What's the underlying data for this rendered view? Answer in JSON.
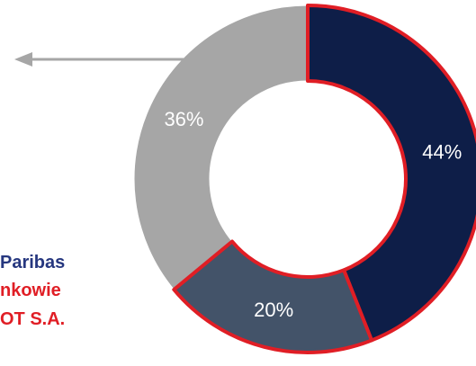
{
  "colors": {
    "background": "#ffffff",
    "slice_outline": "#e01e25",
    "arrow": "#a6a6a6",
    "legend_navy": "#26377f",
    "legend_red": "#e01e25"
  },
  "legend_fragments": [
    {
      "text": "Paribas",
      "color": "#26377f"
    },
    {
      "text": "nkowie",
      "color": "#e01e25"
    },
    {
      "text": "OT S.A.",
      "color": "#e01e25"
    }
  ],
  "chart_data": {
    "type": "pie",
    "variant": "donut",
    "title": "",
    "slices": [
      {
        "label": "44%",
        "value": 44,
        "color": "#0e1e48",
        "outlined": true
      },
      {
        "label": "20%",
        "value": 20,
        "color": "#435369",
        "outlined": true
      },
      {
        "label": "36%",
        "value": 36,
        "color": "#a6a6a6",
        "outlined": false
      }
    ],
    "start_angle_deg": 0,
    "direction": "clockwise",
    "legend_position": "left",
    "annotations": [
      {
        "type": "arrow",
        "direction": "left"
      }
    ]
  }
}
